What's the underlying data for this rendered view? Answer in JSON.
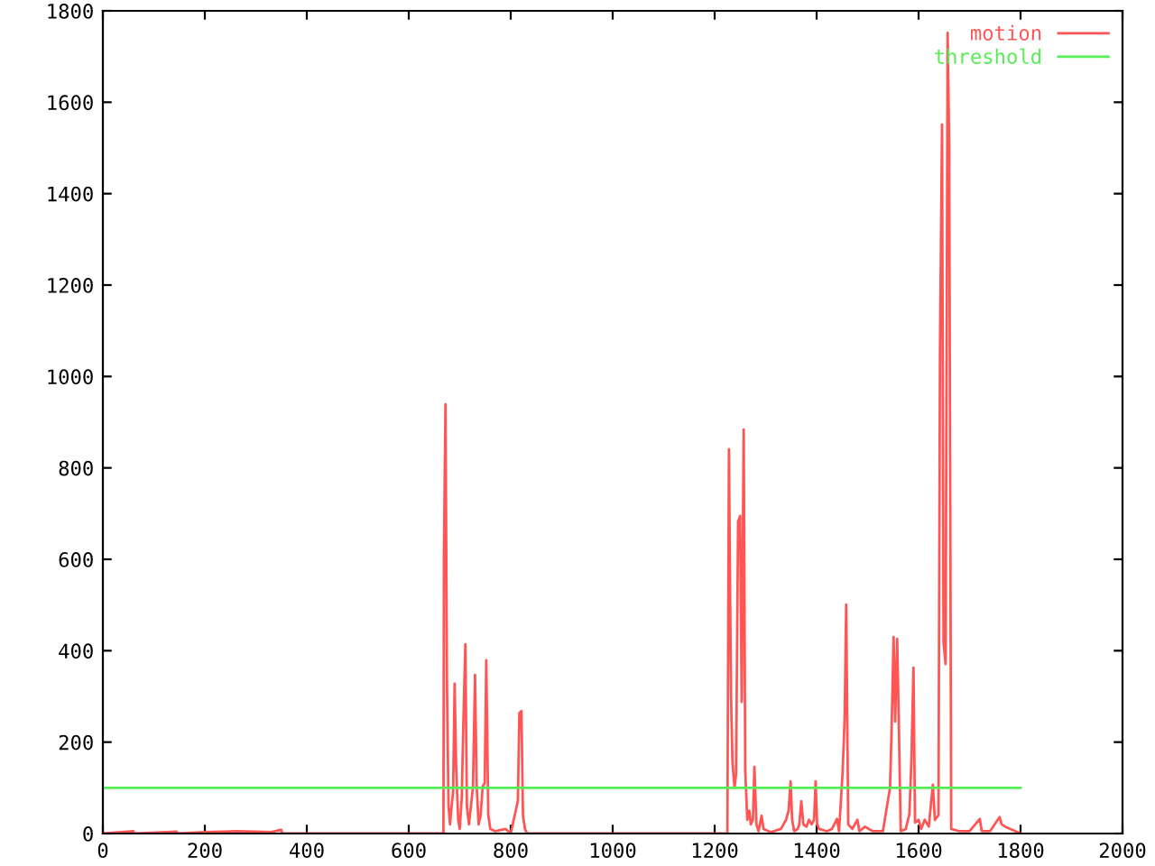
{
  "chart_data": {
    "type": "line",
    "series": [
      {
        "name": "motion",
        "color": "#ff5555",
        "x": [
          0,
          60,
          62,
          145,
          147,
          200,
          260,
          300,
          330,
          350,
          352,
          600,
          668,
          669,
          672,
          675,
          678,
          681,
          684,
          687,
          690,
          693,
          697,
          700,
          704,
          707,
          711,
          714,
          718,
          722,
          726,
          730,
          733,
          737,
          741,
          745,
          749,
          752,
          756,
          760,
          770,
          790,
          800,
          814,
          817,
          821,
          824,
          828,
          832,
          1225,
          1228,
          1232,
          1235,
          1239,
          1242,
          1246,
          1250,
          1253,
          1257,
          1260,
          1264,
          1268,
          1271,
          1275,
          1278,
          1282,
          1286,
          1292,
          1296,
          1310,
          1330,
          1340,
          1345,
          1349,
          1352,
          1356,
          1363,
          1366,
          1370,
          1374,
          1380,
          1385,
          1390,
          1395,
          1398,
          1401,
          1405,
          1420,
          1430,
          1440,
          1444,
          1451,
          1455,
          1458,
          1462,
          1470,
          1480,
          1484,
          1495,
          1510,
          1530,
          1544,
          1547,
          1551,
          1554,
          1558,
          1561,
          1565,
          1575,
          1582,
          1586,
          1590,
          1593,
          1600,
          1605,
          1612,
          1620,
          1628,
          1632,
          1639,
          1642,
          1646,
          1649,
          1653,
          1657,
          1660,
          1664,
          1670,
          1680,
          1700,
          1720,
          1724,
          1740,
          1759,
          1763,
          1770,
          1780,
          1790,
          1800
        ],
        "values": [
          0,
          5,
          0,
          4,
          0,
          3,
          5,
          4,
          3,
          8,
          0,
          0,
          0,
          608,
          939,
          320,
          60,
          20,
          60,
          90,
          328,
          142,
          30,
          10,
          80,
          237,
          414,
          60,
          20,
          60,
          103,
          347,
          110,
          20,
          40,
          103,
          110,
          379,
          40,
          10,
          5,
          10,
          0,
          71,
          264,
          268,
          40,
          10,
          0,
          0,
          841,
          308,
          154,
          100,
          130,
          683,
          695,
          288,
          884,
          138,
          30,
          50,
          20,
          30,
          146,
          20,
          5,
          39,
          10,
          3,
          10,
          30,
          50,
          114,
          30,
          5,
          10,
          20,
          71,
          20,
          15,
          30,
          20,
          30,
          114,
          20,
          10,
          5,
          10,
          32,
          5,
          134,
          253,
          501,
          20,
          10,
          30,
          5,
          15,
          5,
          5,
          100,
          225,
          430,
          245,
          426,
          256,
          5,
          10,
          43,
          162,
          363,
          24,
          30,
          10,
          30,
          15,
          107,
          30,
          40,
          1062,
          1551,
          418,
          371,
          1752,
          1508,
          10,
          8,
          5,
          5,
          32,
          5,
          5,
          36,
          20,
          15,
          10,
          5,
          0
        ]
      },
      {
        "name": "threshold",
        "color": "#55ee55",
        "x": [
          0,
          1800
        ],
        "values": [
          100,
          100
        ]
      }
    ],
    "xlim": [
      0,
      2000
    ],
    "xticks": [
      0,
      200,
      400,
      600,
      800,
      1000,
      1200,
      1400,
      1600,
      1800,
      2000
    ],
    "ylim": [
      0,
      1800
    ],
    "yticks": [
      0,
      200,
      400,
      600,
      800,
      1000,
      1200,
      1400,
      1600,
      1800
    ],
    "grid": false,
    "legend": "top right",
    "marker": "none",
    "line_style": "solid"
  }
}
